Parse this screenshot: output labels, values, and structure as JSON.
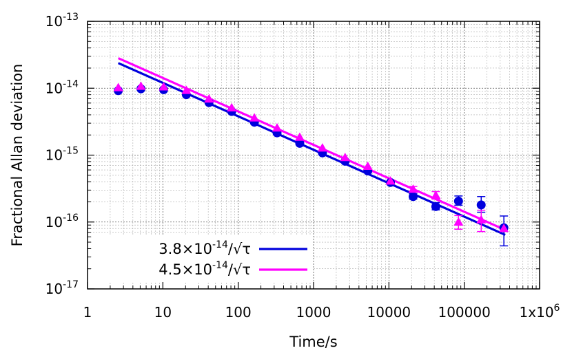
{
  "chart_data": {
    "type": "scatter",
    "title": "",
    "xlabel": "Time/s",
    "ylabel": "Fractional Allan deviation",
    "x_scale": "log",
    "y_scale": "log",
    "xlim": [
      1,
      1000000
    ],
    "ylim": [
      1e-17,
      1e-13
    ],
    "grid": true,
    "legend_position": "bottom-left",
    "x_ticks": [
      {
        "value": 1,
        "label": "1"
      },
      {
        "value": 10,
        "label": "10"
      },
      {
        "value": 100,
        "label": "100"
      },
      {
        "value": 1000,
        "label": "1000"
      },
      {
        "value": 10000,
        "label": "10000"
      },
      {
        "value": 100000,
        "label": "100000"
      },
      {
        "value": 1000000,
        "label": "1x10",
        "exp": "6"
      }
    ],
    "y_ticks": [
      {
        "value": 1e-17,
        "mant": "10",
        "exp": "-17"
      },
      {
        "value": 1e-16,
        "mant": "10",
        "exp": "-16"
      },
      {
        "value": 1e-15,
        "mant": "10",
        "exp": "-15"
      },
      {
        "value": 1e-14,
        "mant": "10",
        "exp": "-14"
      },
      {
        "value": 1e-13,
        "mant": "10",
        "exp": "-13"
      }
    ],
    "fits": [
      {
        "coefficient": 3.8e-14,
        "label_prefix": "3.8×10",
        "label_exp": "-14",
        "label_suffix": "/√τ",
        "color": "#0000dd",
        "x_range": [
          2.56,
          350000
        ]
      },
      {
        "coefficient": 4.5e-14,
        "label_prefix": "4.5×10",
        "label_exp": "-14",
        "label_suffix": "/√τ",
        "color": "#ff00ff",
        "x_range": [
          2.56,
          350000
        ]
      }
    ],
    "series": [
      {
        "marker": "circle",
        "color": "#0000dd",
        "x": [
          2.56,
          5.12,
          10.24,
          20.48,
          40.96,
          81.92,
          163.84,
          327.68,
          655.36,
          1310.72,
          2621.44,
          5242.88,
          10485.76,
          20971.52,
          41943.04,
          83886.08,
          167772.16,
          335544.32
        ],
        "y": [
          9.2e-15,
          9.8e-15,
          9.5e-15,
          8e-15,
          6.1e-15,
          4.5e-15,
          3.1e-15,
          2.15e-15,
          1.5e-15,
          1.08e-15,
          8.1e-16,
          5.8e-16,
          3.9e-16,
          2.4e-16,
          1.7e-16,
          2.05e-16,
          1.8e-16,
          8.2e-17
        ],
        "err_low": [
          null,
          null,
          null,
          null,
          null,
          null,
          null,
          null,
          null,
          null,
          null,
          null,
          null,
          2.2e-16,
          1.52e-16,
          1.78e-16,
          1.4e-16,
          4.4e-17
        ],
        "err_high": [
          null,
          null,
          null,
          null,
          null,
          null,
          null,
          null,
          null,
          null,
          null,
          null,
          null,
          2.65e-16,
          1.95e-16,
          2.45e-16,
          2.4e-16,
          1.23e-16
        ]
      },
      {
        "marker": "triangle",
        "color": "#ff00ff",
        "x": [
          2.56,
          5.12,
          10.24,
          20.48,
          40.96,
          81.92,
          163.84,
          327.68,
          655.36,
          1310.72,
          2621.44,
          5242.88,
          10485.76,
          20971.52,
          41943.04,
          83886.08,
          167772.16,
          335544.32
        ],
        "y": [
          1.02e-14,
          1.07e-14,
          1.05e-14,
          9.3e-15,
          6.9e-15,
          5.1e-15,
          3.6e-15,
          2.55e-15,
          1.85e-15,
          1.28e-15,
          9.2e-16,
          6.8e-16,
          4.1e-16,
          3.1e-16,
          2.5e-16,
          1e-16,
          1.08e-16,
          8e-17
        ],
        "err_low": [
          null,
          null,
          null,
          null,
          null,
          null,
          null,
          null,
          null,
          null,
          null,
          null,
          null,
          2.8e-16,
          2.2e-16,
          7.8e-17,
          7.2e-17,
          null
        ],
        "err_high": [
          null,
          null,
          null,
          null,
          null,
          null,
          null,
          null,
          null,
          null,
          null,
          null,
          null,
          3.4e-16,
          2.85e-16,
          1.25e-16,
          1.5e-16,
          null
        ]
      }
    ]
  }
}
